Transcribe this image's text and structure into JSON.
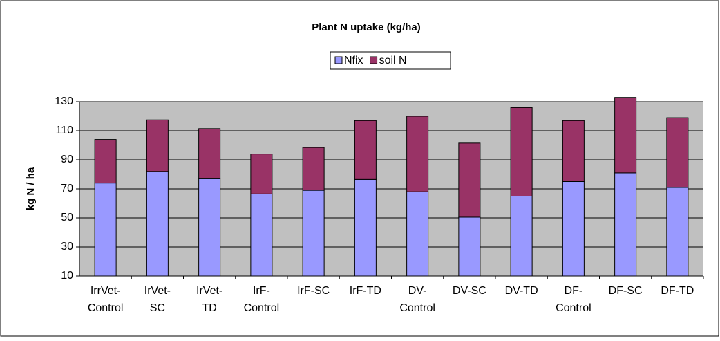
{
  "chart_data": {
    "type": "stacked_bar",
    "title": "Plant N uptake (kg/ha)",
    "y_label": "kg N / ha",
    "categories": [
      "IrrVet-Control",
      "IrVet-SC",
      "IrVet-TD",
      "IrF-Control",
      "IrF-SC",
      "IrF-TD",
      "DV-Control",
      "DV-SC",
      "DV-TD",
      "DF-Control",
      "DF-SC",
      "DF-TD"
    ],
    "series": [
      {
        "name": "Nfix",
        "color": "#9999ff",
        "values": [
          64,
          72,
          67,
          56.5,
          59,
          66.5,
          58,
          40.5,
          55,
          65,
          71,
          61
        ]
      },
      {
        "name": "soil N",
        "color": "#993366",
        "values": [
          30,
          35.5,
          34.5,
          27.5,
          29.5,
          40.5,
          52,
          51,
          61,
          42,
          52,
          48
        ]
      }
    ],
    "ylim": [
      10,
      130
    ],
    "yticks": [
      10,
      30,
      50,
      70,
      90,
      110,
      130
    ],
    "grid": true,
    "legend": "top"
  }
}
